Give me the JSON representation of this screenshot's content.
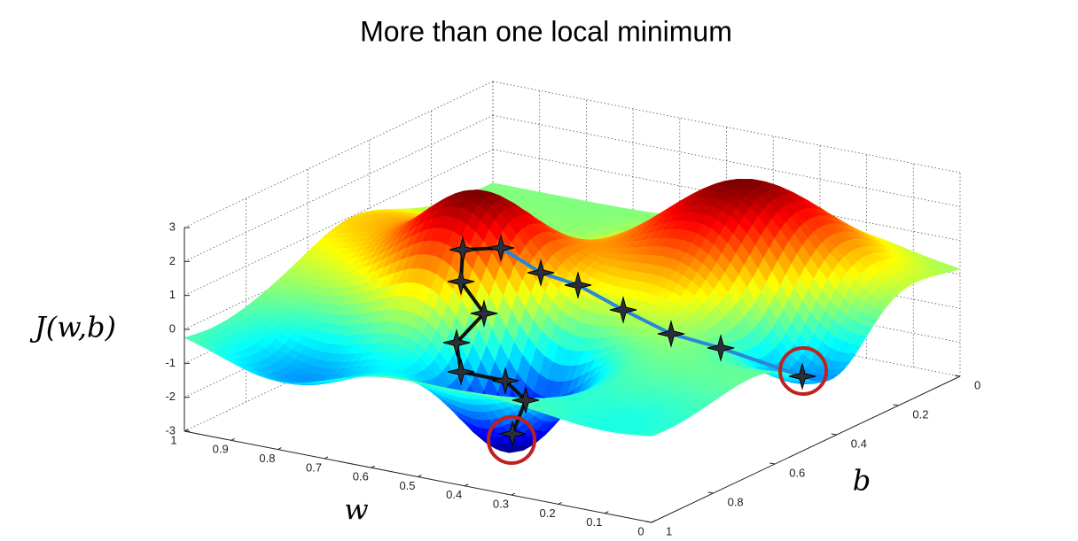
{
  "chart_data": {
    "type": "surface",
    "title": "More than one local minimum",
    "xlabel": "w",
    "ylabel": "b",
    "zlabel": "J(w,b)",
    "xlim": [
      0,
      1
    ],
    "xticks": [
      0,
      0.1,
      0.2,
      0.3,
      0.4,
      0.5,
      0.6,
      0.7,
      0.8,
      0.9,
      1
    ],
    "ylim": [
      0,
      1
    ],
    "yticks": [
      0,
      0.2,
      0.4,
      0.6,
      0.8,
      1
    ],
    "zlim": [
      -3,
      3
    ],
    "zticks": [
      -3,
      -2,
      -1,
      0,
      1,
      2,
      3
    ],
    "colormap": "jet",
    "grid": true
  }
}
